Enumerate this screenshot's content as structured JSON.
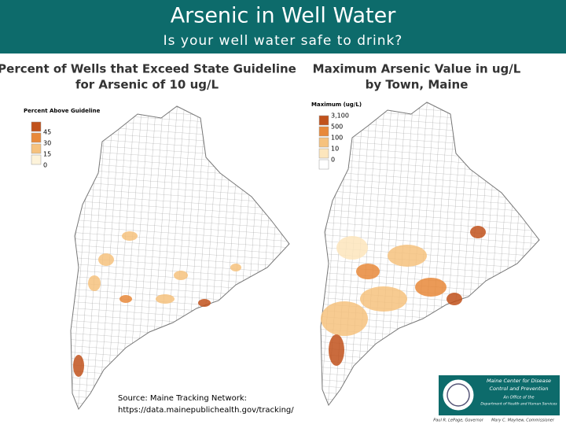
{
  "header": {
    "title": "Arsenic in Well Water",
    "subtitle": "Is your well water safe to drink?"
  },
  "maps": [
    {
      "title_lines": [
        "Percent of Wells that Exceed State Guideline",
        "for Arsenic of 10 ug/L"
      ],
      "legend": {
        "title": "Percent Above Guideline",
        "items": [
          {
            "label": "45",
            "color": "#c1521c"
          },
          {
            "label": "30",
            "color": "#e8893a"
          },
          {
            "label": "15",
            "color": "#f6c27e"
          },
          {
            "label": "0",
            "color": "#fdf3da"
          }
        ]
      }
    },
    {
      "title_lines": [
        "Maximum Arsenic Value in ug/L",
        "by Town, Maine"
      ],
      "legend": {
        "title": "Maximum  (ug/L)",
        "items": [
          {
            "label": "3,100",
            "color": "#c1521c"
          },
          {
            "label": "500",
            "color": "#e8893a"
          },
          {
            "label": "100",
            "color": "#f6c27e"
          },
          {
            "label": "10",
            "color": "#fde6bd"
          },
          {
            "label": "0",
            "color": "#ffffff"
          }
        ]
      }
    }
  ],
  "source_lines": [
    "Source: Maine Tracking Network:",
    "https://data.mainepublichealth.gov/tracking/"
  ],
  "logo": {
    "lines": [
      "Maine Center for Disease",
      "Control and Prevention",
      "An Office of the",
      "Department of Health and Human Services"
    ],
    "governor": "Paul R. LePage, Governor",
    "commissioner": "Mary C. Mayhew, Commissioner"
  }
}
